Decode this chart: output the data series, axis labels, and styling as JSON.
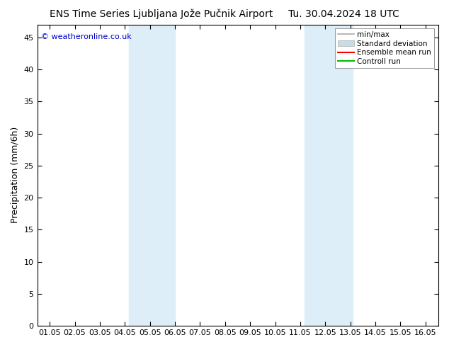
{
  "title_left": "ENS Time Series Ljubljana Jože Pučnik Airport",
  "title_right": "Tu. 30.04.2024 18 UTC",
  "ylabel": "Precipitation (mm/6h)",
  "watermark": "© weatheronline.co.uk",
  "background_color": "#ffffff",
  "plot_bg_color": "#ffffff",
  "shaded_regions": [
    {
      "xstart": 4.1667,
      "xend": 6.0,
      "color": "#ddeef8"
    },
    {
      "xstart": 11.1667,
      "xend": 13.0833,
      "color": "#ddeef8"
    }
  ],
  "x_ticks": [
    1,
    2,
    3,
    4,
    5,
    6,
    7,
    8,
    9,
    10,
    11,
    12,
    13,
    14,
    15,
    16
  ],
  "x_tick_labels": [
    "01.05",
    "02.05",
    "03.05",
    "04.05",
    "05.05",
    "06.05",
    "07.05",
    "08.05",
    "09.05",
    "10.05",
    "11.05",
    "12.05",
    "13.05",
    "14.05",
    "15.05",
    "16.05"
  ],
  "xlim": [
    0.5,
    16.5
  ],
  "ylim": [
    0,
    47
  ],
  "y_ticks": [
    0,
    5,
    10,
    15,
    20,
    25,
    30,
    35,
    40,
    45
  ],
  "legend_items": [
    {
      "label": "min/max",
      "color": "#aaaaaa",
      "linewidth": 1.2,
      "linestyle": "-",
      "type": "line"
    },
    {
      "label": "Standard deviation",
      "color": "#c8dce8",
      "linewidth": 6,
      "linestyle": "-",
      "type": "patch"
    },
    {
      "label": "Ensemble mean run",
      "color": "#ff0000",
      "linewidth": 1.5,
      "linestyle": "-",
      "type": "line"
    },
    {
      "label": "Controll run",
      "color": "#00bb00",
      "linewidth": 1.5,
      "linestyle": "-",
      "type": "line"
    }
  ],
  "title_fontsize": 10,
  "axis_label_fontsize": 9,
  "tick_fontsize": 8,
  "legend_fontsize": 7.5,
  "watermark_color": "#0000cc",
  "watermark_fontsize": 8
}
